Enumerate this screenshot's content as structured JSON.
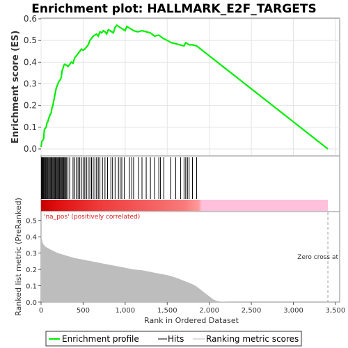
{
  "chart_data": {
    "type": "line",
    "title": "Enrichment plot: HALLMARK_E2F_TARGETS",
    "es_panel": {
      "ylabel": "Enrichment score (ES)",
      "ylim": [
        0.0,
        0.6
      ],
      "yticks": [
        "0.0",
        "0.1",
        "0.2",
        "0.3",
        "0.4",
        "0.5",
        "0.6"
      ],
      "grid": true,
      "series": [
        {
          "name": "Enrichment profile",
          "color": "#00ee00",
          "x": [
            0,
            10,
            20,
            30,
            40,
            50,
            60,
            70,
            80,
            90,
            100,
            110,
            120,
            130,
            140,
            150,
            160,
            170,
            180,
            190,
            200,
            210,
            220,
            230,
            240,
            250,
            260,
            270,
            280,
            290,
            300,
            310,
            320,
            340,
            360,
            380,
            400,
            420,
            440,
            460,
            480,
            500,
            520,
            540,
            560,
            580,
            600,
            620,
            640,
            660,
            680,
            700,
            720,
            740,
            760,
            780,
            800,
            820,
            840,
            860,
            880,
            900,
            920,
            940,
            960,
            980,
            1000,
            1020,
            1040,
            1060,
            1080,
            1100,
            1150,
            1200,
            1250,
            1300,
            1350,
            1400,
            1450,
            1500,
            1550,
            1600,
            1650,
            1700,
            1720,
            1740,
            1760,
            1800,
            1850,
            3410
          ],
          "y": [
            0.01,
            0.035,
            0.04,
            0.045,
            0.09,
            0.095,
            0.1,
            0.12,
            0.125,
            0.14,
            0.15,
            0.16,
            0.165,
            0.19,
            0.2,
            0.22,
            0.24,
            0.26,
            0.28,
            0.29,
            0.3,
            0.31,
            0.315,
            0.32,
            0.33,
            0.36,
            0.37,
            0.385,
            0.39,
            0.39,
            0.385,
            0.385,
            0.38,
            0.39,
            0.4,
            0.395,
            0.42,
            0.43,
            0.44,
            0.45,
            0.46,
            0.455,
            0.46,
            0.47,
            0.48,
            0.5,
            0.51,
            0.52,
            0.525,
            0.53,
            0.52,
            0.54,
            0.535,
            0.545,
            0.54,
            0.53,
            0.55,
            0.545,
            0.54,
            0.535,
            0.56,
            0.57,
            0.565,
            0.56,
            0.555,
            0.55,
            0.545,
            0.565,
            0.56,
            0.555,
            0.55,
            0.545,
            0.54,
            0.545,
            0.54,
            0.535,
            0.52,
            0.525,
            0.51,
            0.5,
            0.49,
            0.485,
            0.48,
            0.475,
            0.49,
            0.485,
            0.48,
            0.48,
            0.475,
            0.0
          ]
        }
      ]
    },
    "hits_panel": {
      "legend_label": "Hits",
      "hit_positions": [
        5,
        12,
        20,
        28,
        35,
        45,
        52,
        60,
        70,
        80,
        90,
        100,
        110,
        120,
        130,
        140,
        150,
        160,
        170,
        180,
        190,
        200,
        210,
        220,
        230,
        240,
        250,
        260,
        270,
        280,
        290,
        300,
        320,
        340,
        380,
        400,
        420,
        440,
        460,
        480,
        500,
        520,
        540,
        560,
        580,
        600,
        620,
        640,
        660,
        680,
        700,
        730,
        760,
        790,
        830,
        850,
        880,
        920,
        940,
        960,
        990,
        1050,
        1080,
        1100,
        1160,
        1200,
        1250,
        1300,
        1350,
        1400,
        1420,
        1460,
        1540,
        1600,
        1660,
        1700,
        1720,
        1740,
        1760,
        1800,
        1850
      ]
    },
    "metric_panel": {
      "xlabel": "Rank in Ordered Dataset",
      "ylabel": "Ranked list metric (PreRanked)",
      "ylim": [
        0.0,
        0.55
      ],
      "yticks": [
        "0.0",
        "0.1",
        "0.2",
        "0.3",
        "0.4",
        "0.5"
      ],
      "xlim": [
        0,
        3550
      ],
      "xticks": [
        "0",
        "500",
        "1,000",
        "1,500",
        "2,000",
        "2,500",
        "3,000",
        "3,500"
      ],
      "pos_label": "'na_pos' (positively correlated)",
      "zero_cross_label": "Zero cross at",
      "zero_cross_rank": 3410,
      "series": [
        {
          "name": "Ranking metric scores",
          "x": [
            0,
            20,
            50,
            100,
            200,
            300,
            400,
            500,
            600,
            700,
            800,
            900,
            1000,
            1100,
            1200,
            1300,
            1400,
            1500,
            1600,
            1700,
            1800,
            1850,
            1900,
            1950,
            2000,
            2050,
            2100,
            2150,
            2200,
            2300,
            2500,
            3000,
            3400
          ],
          "y": [
            0.41,
            0.36,
            0.34,
            0.325,
            0.3,
            0.285,
            0.27,
            0.26,
            0.25,
            0.24,
            0.23,
            0.22,
            0.21,
            0.2,
            0.195,
            0.185,
            0.175,
            0.165,
            0.15,
            0.13,
            0.11,
            0.095,
            0.075,
            0.055,
            0.035,
            0.015,
            0.005,
            0.002,
            0.001,
            0.0,
            0.0,
            0.0,
            0.0
          ]
        }
      ]
    },
    "legend": {
      "items": [
        "Enrichment profile",
        "Hits",
        "Ranking metric scores"
      ],
      "profile_color": "#00ee00",
      "hits_color": "#000000",
      "metric_color": "#bdbdbd"
    }
  }
}
